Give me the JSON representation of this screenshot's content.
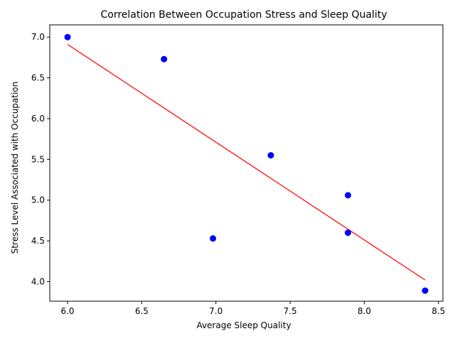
{
  "chart_data": {
    "type": "scatter",
    "title": "Correlation Between Occupation Stress and Sleep Quality",
    "xlabel": "Average Sleep Quality",
    "ylabel": "Stress Level Associated with Occupation",
    "xlim": [
      5.88,
      8.53
    ],
    "ylim": [
      3.76,
      7.15
    ],
    "xticks": [
      "6.0",
      "6.5",
      "7.0",
      "7.5",
      "8.0",
      "8.5"
    ],
    "yticks": [
      "4.0",
      "4.5",
      "5.0",
      "5.5",
      "6.0",
      "6.5",
      "7.0"
    ],
    "grid": false,
    "series": [
      {
        "x": [
          6.0,
          6.65,
          7.37,
          7.89,
          7.89,
          6.98,
          8.41
        ],
        "y": [
          7.0,
          6.73,
          5.55,
          5.06,
          4.6,
          4.53,
          3.89
        ],
        "color": "#0000ff"
      }
    ],
    "trendline": {
      "x": [
        6.0,
        8.41
      ],
      "y": [
        6.91,
        4.02
      ],
      "color": "#ff0000"
    }
  }
}
